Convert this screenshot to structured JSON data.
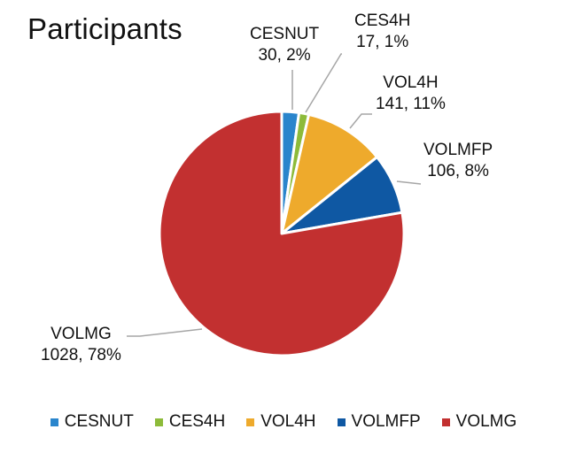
{
  "chart_data": {
    "type": "pie",
    "title": "Participants",
    "categories": [
      "CESNUT",
      "CES4H",
      "VOL4H",
      "VOLMFP",
      "VOLMG"
    ],
    "values": [
      30,
      17,
      141,
      106,
      1028
    ],
    "percent_labels": [
      "2%",
      "1%",
      "11%",
      "8%",
      "78%"
    ],
    "colors": [
      "#2a85cc",
      "#8dbb3a",
      "#eeaa2c",
      "#0f58a3",
      "#c23030"
    ],
    "start_angle_deg": 0,
    "direction": "clockwise",
    "legend_position": "bottom"
  },
  "title": "Participants",
  "labels": [
    {
      "name": "CESNUT",
      "value_pct": "30, 2%"
    },
    {
      "name": "CES4H",
      "value_pct": "17, 1%"
    },
    {
      "name": "VOL4H",
      "value_pct": "141, 11%"
    },
    {
      "name": "VOLMFP",
      "value_pct": "106, 8%"
    },
    {
      "name": "VOLMG",
      "value_pct": "1028, 78%"
    }
  ],
  "legend": [
    {
      "label": "CESNUT",
      "color": "#2a85cc"
    },
    {
      "label": "CES4H",
      "color": "#8dbb3a"
    },
    {
      "label": "VOL4H",
      "color": "#eeaa2c"
    },
    {
      "label": "VOLMFP",
      "color": "#0f58a3"
    },
    {
      "label": "VOLMG",
      "color": "#c23030"
    }
  ]
}
